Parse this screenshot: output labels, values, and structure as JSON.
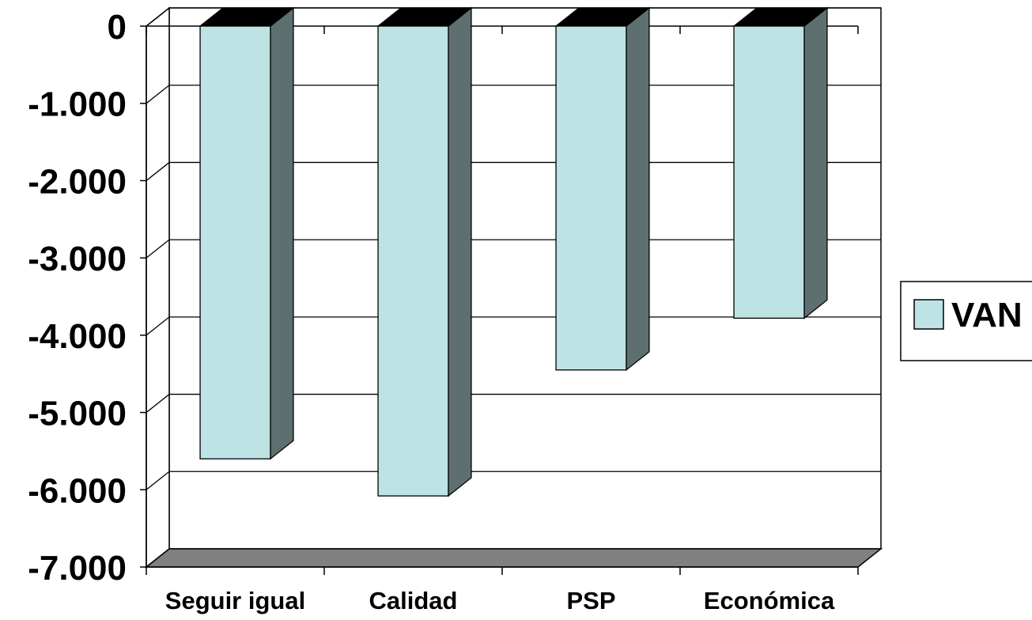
{
  "chart_data": {
    "type": "bar",
    "style": "3d-column",
    "categories": [
      "Seguir igual",
      "Calidad",
      "PSP",
      "Económica"
    ],
    "series": [
      {
        "name": "VAN",
        "values": [
          -5600,
          -6080,
          -4450,
          -3780
        ]
      }
    ],
    "ylim": [
      -7000,
      0
    ],
    "yticks": [
      0,
      -1000,
      -2000,
      -3000,
      -4000,
      -5000,
      -6000,
      -7000
    ],
    "ytick_labels": [
      "0",
      "-1.000",
      "-2.000",
      "-3.000",
      "-4.000",
      "-5.000",
      "-6.000",
      "-7.000"
    ],
    "grid": true,
    "legend": {
      "position": "right",
      "label": "VAN"
    },
    "colors": {
      "bar_front": "#bde3e4",
      "bar_side": "#5e6f70",
      "bar_top": "#000000",
      "floor": "#808080",
      "grid": "#000000"
    }
  }
}
